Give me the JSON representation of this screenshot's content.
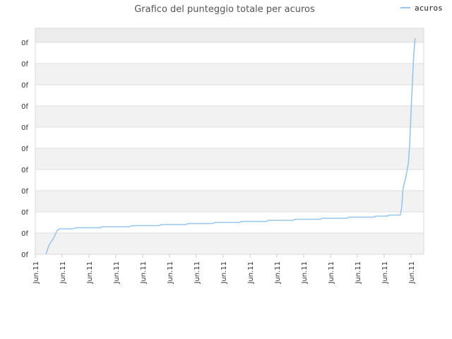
{
  "chart_data": {
    "type": "line",
    "title": "Grafico del punteggio totale per acuros",
    "xlabel": "",
    "ylabel": "",
    "legend": {
      "entries": [
        "acuros"
      ],
      "position": "top-right"
    },
    "grid": true,
    "ylim": [
      0,
      10
    ],
    "y_tick_labels": [
      "0f",
      "0f",
      "0f",
      "0f",
      "0f",
      "0f",
      "0f",
      "0f",
      "0f",
      "0f",
      "0f"
    ],
    "x_tick_labels": [
      "Jun.11",
      "Jun.11",
      "Jun.11",
      "Jun.11",
      "Jun.11",
      "Jun.11",
      "Jun.11",
      "Jun.11",
      "Jun.11",
      "Jun.11",
      "Jun.11",
      "Jun.11",
      "Jun.11",
      "Jun.11",
      "Jun.11"
    ],
    "series": [
      {
        "name": "acuros",
        "color": "#99c5ec",
        "points": [
          [
            0.4,
            0.0
          ],
          [
            0.5,
            0.4
          ],
          [
            0.6,
            0.6
          ],
          [
            0.7,
            0.8
          ],
          [
            0.8,
            1.1
          ],
          [
            0.9,
            1.2
          ],
          [
            1.4,
            1.2
          ],
          [
            1.5,
            1.25
          ],
          [
            2.4,
            1.25
          ],
          [
            2.5,
            1.3
          ],
          [
            3.5,
            1.3
          ],
          [
            3.6,
            1.35
          ],
          [
            4.6,
            1.35
          ],
          [
            4.7,
            1.4
          ],
          [
            5.6,
            1.4
          ],
          [
            5.7,
            1.45
          ],
          [
            6.6,
            1.45
          ],
          [
            6.7,
            1.5
          ],
          [
            7.6,
            1.5
          ],
          [
            7.7,
            1.55
          ],
          [
            8.6,
            1.55
          ],
          [
            8.7,
            1.6
          ],
          [
            9.6,
            1.6
          ],
          [
            9.7,
            1.65
          ],
          [
            10.6,
            1.65
          ],
          [
            10.7,
            1.7
          ],
          [
            11.6,
            1.7
          ],
          [
            11.7,
            1.75
          ],
          [
            12.6,
            1.75
          ],
          [
            12.7,
            1.8
          ],
          [
            13.1,
            1.8
          ],
          [
            13.2,
            1.85
          ],
          [
            13.6,
            1.85
          ],
          [
            13.65,
            2.2
          ],
          [
            13.7,
            3.1
          ],
          [
            13.8,
            3.6
          ],
          [
            13.9,
            4.3
          ],
          [
            13.95,
            5.2
          ],
          [
            14.0,
            6.7
          ],
          [
            14.05,
            8.1
          ],
          [
            14.1,
            9.4
          ],
          [
            14.15,
            10.2
          ]
        ]
      }
    ]
  }
}
